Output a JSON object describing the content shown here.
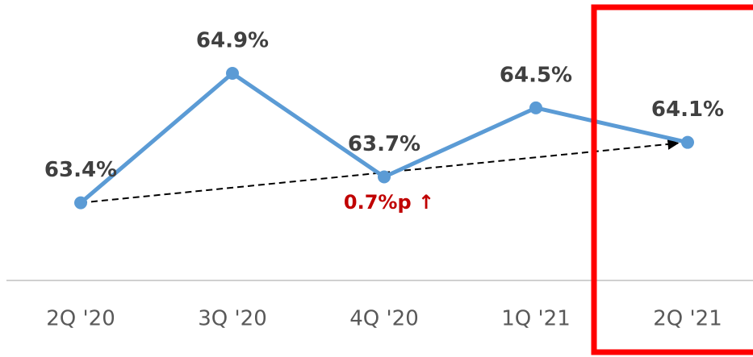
{
  "chart_data": {
    "type": "line",
    "categories": [
      "2Q '20",
      "3Q '20",
      "4Q '20",
      "1Q '21",
      "2Q '21"
    ],
    "values": [
      63.4,
      64.9,
      63.7,
      64.5,
      64.1
    ],
    "value_labels": [
      "63.4%",
      "64.9%",
      "63.7%",
      "64.5%",
      "64.1%"
    ],
    "color": "#5b9bd5",
    "ylim": [
      62.5,
      65.75
    ],
    "annotation": "0.7%p ↑"
  }
}
